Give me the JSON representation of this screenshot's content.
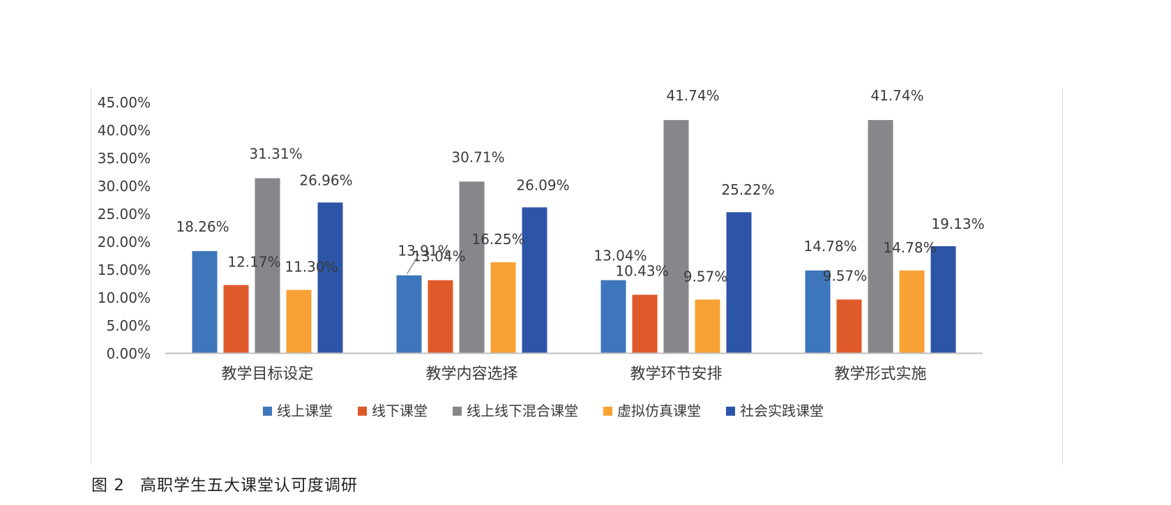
{
  "caption": {
    "figure_label": "图 2",
    "title": "高职学生五大课堂认可度调研"
  },
  "chart_data": {
    "type": "bar",
    "categories": [
      "教学目标设定",
      "教学内容选择",
      "教学环节安排",
      "教学形式实施"
    ],
    "series": [
      {
        "name": "线上课堂",
        "color": "#3d76bb",
        "values": [
          18.26,
          13.91,
          13.04,
          14.78
        ],
        "labels": [
          "18.26%",
          "13.91%",
          "13.04%",
          "14.78%"
        ]
      },
      {
        "name": "线下课堂",
        "color": "#df5a2b",
        "values": [
          12.17,
          13.04,
          10.43,
          9.57
        ],
        "labels": [
          "12.17%",
          "13.04%",
          "10.43%",
          "9.57%"
        ]
      },
      {
        "name": "线上线下混合课堂",
        "color": "#87878b",
        "values": [
          31.31,
          30.71,
          41.74,
          41.74
        ],
        "labels": [
          "31.31%",
          "30.71%",
          "41.74%",
          "41.74%"
        ]
      },
      {
        "name": "虚拟仿真课堂",
        "color": "#f8a235",
        "values": [
          11.3,
          16.25,
          9.57,
          14.78
        ],
        "labels": [
          "11.30%",
          "16.25%",
          "9.57%",
          "14.78%"
        ]
      },
      {
        "name": "社会实践课堂",
        "color": "#2d55a7",
        "values": [
          26.96,
          26.09,
          25.22,
          19.13
        ],
        "labels": [
          "26.96%",
          "26.09%",
          "25.22%",
          "19.13%"
        ]
      }
    ],
    "yticks": [
      "0.00%",
      "5.00%",
      "10.00%",
      "15.00%",
      "20.00%",
      "25.00%",
      "30.00%",
      "35.00%",
      "40.00%",
      "45.00%"
    ],
    "ylim": [
      0,
      45
    ],
    "grid": false,
    "legend_position": "bottom"
  }
}
